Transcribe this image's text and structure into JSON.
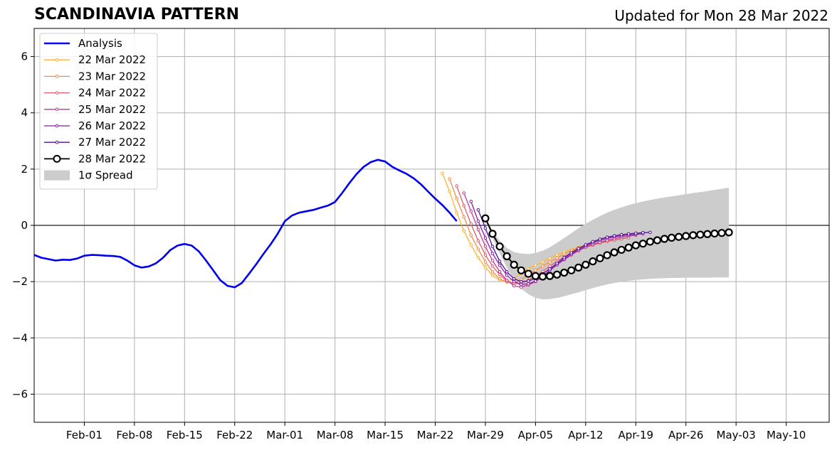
{
  "chart_data": {
    "type": "line",
    "title": "SCANDINAVIA PATTERN",
    "subtitle": "Updated for Mon 28 Mar 2022",
    "xlabel": "",
    "ylabel": "",
    "x_range": [
      "2022-01-25",
      "2022-05-16"
    ],
    "ylim": [
      -7,
      7
    ],
    "yticks": [
      -6,
      -4,
      -2,
      0,
      2,
      4,
      6
    ],
    "ytick_labels": [
      "−6",
      "−4",
      "−2",
      "0",
      "2",
      "4",
      "6"
    ],
    "xticks": [
      "2022-02-01",
      "2022-02-08",
      "2022-02-15",
      "2022-02-22",
      "2022-03-01",
      "2022-03-08",
      "2022-03-15",
      "2022-03-22",
      "2022-03-29",
      "2022-04-05",
      "2022-04-12",
      "2022-04-19",
      "2022-04-26",
      "2022-05-03",
      "2022-05-10"
    ],
    "xtick_labels": [
      "Feb-01",
      "Feb-08",
      "Feb-15",
      "Feb-22",
      "Mar-01",
      "Mar-08",
      "Mar-15",
      "Mar-22",
      "Mar-29",
      "Apr-05",
      "Apr-12",
      "Apr-19",
      "Apr-26",
      "May-03",
      "May-10"
    ],
    "grid": true,
    "legend_position": "top-left",
    "analysis": {
      "name": "Analysis",
      "color": "#0000ee",
      "start_date": "2022-01-25",
      "values": [
        -1.05,
        -1.15,
        -1.2,
        -1.25,
        -1.22,
        -1.23,
        -1.18,
        -1.08,
        -1.05,
        -1.06,
        -1.08,
        -1.09,
        -1.12,
        -1.25,
        -1.42,
        -1.5,
        -1.46,
        -1.35,
        -1.15,
        -0.88,
        -0.72,
        -0.66,
        -0.72,
        -0.93,
        -1.25,
        -1.6,
        -1.95,
        -2.15,
        -2.2,
        -2.05,
        -1.72,
        -1.38,
        -1.02,
        -0.68,
        -0.3,
        0.15,
        0.35,
        0.45,
        0.5,
        0.55,
        0.63,
        0.7,
        0.83,
        1.15,
        1.5,
        1.82,
        2.08,
        2.25,
        2.33,
        2.27,
        2.08,
        1.95,
        1.83,
        1.67,
        1.46,
        1.2,
        0.95,
        0.72,
        0.45,
        0.15
      ]
    },
    "forecasts": [
      {
        "name": "22 Mar 2022",
        "color": "#fdb22f",
        "start_date": "2022-03-23",
        "values": [
          1.85,
          1.2,
          0.45,
          -0.2,
          -0.7,
          -1.15,
          -1.5,
          -1.78,
          -1.95,
          -1.97,
          -1.9,
          -1.7,
          -1.55,
          -1.42,
          -1.3,
          -1.17,
          -1.05,
          -0.95,
          -0.86,
          -0.78,
          -0.72,
          -0.67,
          -0.62,
          -0.58,
          -0.53
        ]
      },
      {
        "name": "23 Mar 2022",
        "color": "#f58b45",
        "start_date": "2022-03-24",
        "values": [
          1.65,
          0.95,
          0.3,
          -0.35,
          -0.85,
          -1.3,
          -1.65,
          -1.9,
          -2.02,
          -2.05,
          -1.93,
          -1.75,
          -1.6,
          -1.45,
          -1.3,
          -1.16,
          -1.02,
          -0.9,
          -0.8,
          -0.74,
          -0.68,
          -0.62,
          -0.56,
          -0.52,
          -0.48
        ]
      },
      {
        "name": "24 Mar 2022",
        "color": "#e05a6e",
        "start_date": "2022-03-25",
        "values": [
          1.4,
          0.7,
          0.05,
          -0.55,
          -1.05,
          -1.45,
          -1.75,
          -1.98,
          -2.08,
          -2.05,
          -1.95,
          -1.8,
          -1.63,
          -1.45,
          -1.28,
          -1.12,
          -0.98,
          -0.87,
          -0.78,
          -0.7,
          -0.63,
          -0.57,
          -0.52,
          -0.48,
          -0.44
        ]
      },
      {
        "name": "25 Mar 2022",
        "color": "#c13a8e",
        "start_date": "2022-03-26",
        "values": [
          1.15,
          0.5,
          -0.15,
          -0.75,
          -1.25,
          -1.65,
          -1.95,
          -2.15,
          -2.2,
          -2.12,
          -2.0,
          -1.82,
          -1.6,
          -1.4,
          -1.22,
          -1.05,
          -0.9,
          -0.78,
          -0.68,
          -0.6,
          -0.53,
          -0.47,
          -0.42,
          -0.38,
          -0.35
        ]
      },
      {
        "name": "26 Mar 2022",
        "color": "#8a1aa8",
        "start_date": "2022-03-27",
        "values": [
          0.85,
          0.15,
          -0.45,
          -1.0,
          -1.42,
          -1.78,
          -2.0,
          -2.1,
          -2.08,
          -1.98,
          -1.82,
          -1.6,
          -1.4,
          -1.2,
          -1.02,
          -0.87,
          -0.73,
          -0.62,
          -0.53,
          -0.46,
          -0.41,
          -0.37,
          -0.34,
          -0.32,
          -0.3
        ]
      },
      {
        "name": "27 Mar 2022",
        "color": "#4e0f96",
        "start_date": "2022-03-28",
        "values": [
          0.55,
          -0.1,
          -0.75,
          -1.28,
          -1.65,
          -1.9,
          -2.0,
          -1.98,
          -1.88,
          -1.72,
          -1.55,
          -1.35,
          -1.15,
          -0.97,
          -0.82,
          -0.69,
          -0.58,
          -0.49,
          -0.42,
          -0.37,
          -0.33,
          -0.3,
          -0.28,
          -0.26,
          -0.25
        ]
      }
    ],
    "current": {
      "name": "28 Mar 2022",
      "color": "#000000",
      "start_date": "2022-03-29",
      "values": [
        0.25,
        -0.3,
        -0.75,
        -1.1,
        -1.4,
        -1.6,
        -1.72,
        -1.8,
        -1.82,
        -1.8,
        -1.75,
        -1.68,
        -1.6,
        -1.5,
        -1.4,
        -1.28,
        -1.17,
        -1.06,
        -0.96,
        -0.87,
        -0.79,
        -0.71,
        -0.65,
        -0.58,
        -0.53,
        -0.48,
        -0.44,
        -0.41,
        -0.38,
        -0.35,
        -0.33,
        -0.31,
        -0.29,
        -0.27,
        -0.25
      ]
    },
    "spread": {
      "name": "1σ Spread",
      "color": "#cccccc",
      "start_date": "2022-03-29",
      "upper": [
        0.3,
        -0.2,
        -0.55,
        -0.8,
        -0.95,
        -1.0,
        -1.02,
        -0.98,
        -0.9,
        -0.78,
        -0.62,
        -0.45,
        -0.28,
        -0.1,
        0.06,
        0.2,
        0.33,
        0.45,
        0.55,
        0.64,
        0.72,
        0.79,
        0.85,
        0.9,
        0.95,
        0.99,
        1.03,
        1.07,
        1.11,
        1.15,
        1.18,
        1.22,
        1.26,
        1.3,
        1.34
      ],
      "lower": [
        0.2,
        -0.45,
        -1.0,
        -1.5,
        -1.95,
        -2.25,
        -2.45,
        -2.58,
        -2.63,
        -2.62,
        -2.58,
        -2.52,
        -2.45,
        -2.38,
        -2.3,
        -2.23,
        -2.16,
        -2.1,
        -2.05,
        -2.0,
        -1.97,
        -1.94,
        -1.92,
        -1.9,
        -1.89,
        -1.88,
        -1.87,
        -1.87,
        -1.86,
        -1.86,
        -1.86,
        -1.86,
        -1.85,
        -1.85,
        -1.85
      ]
    }
  }
}
